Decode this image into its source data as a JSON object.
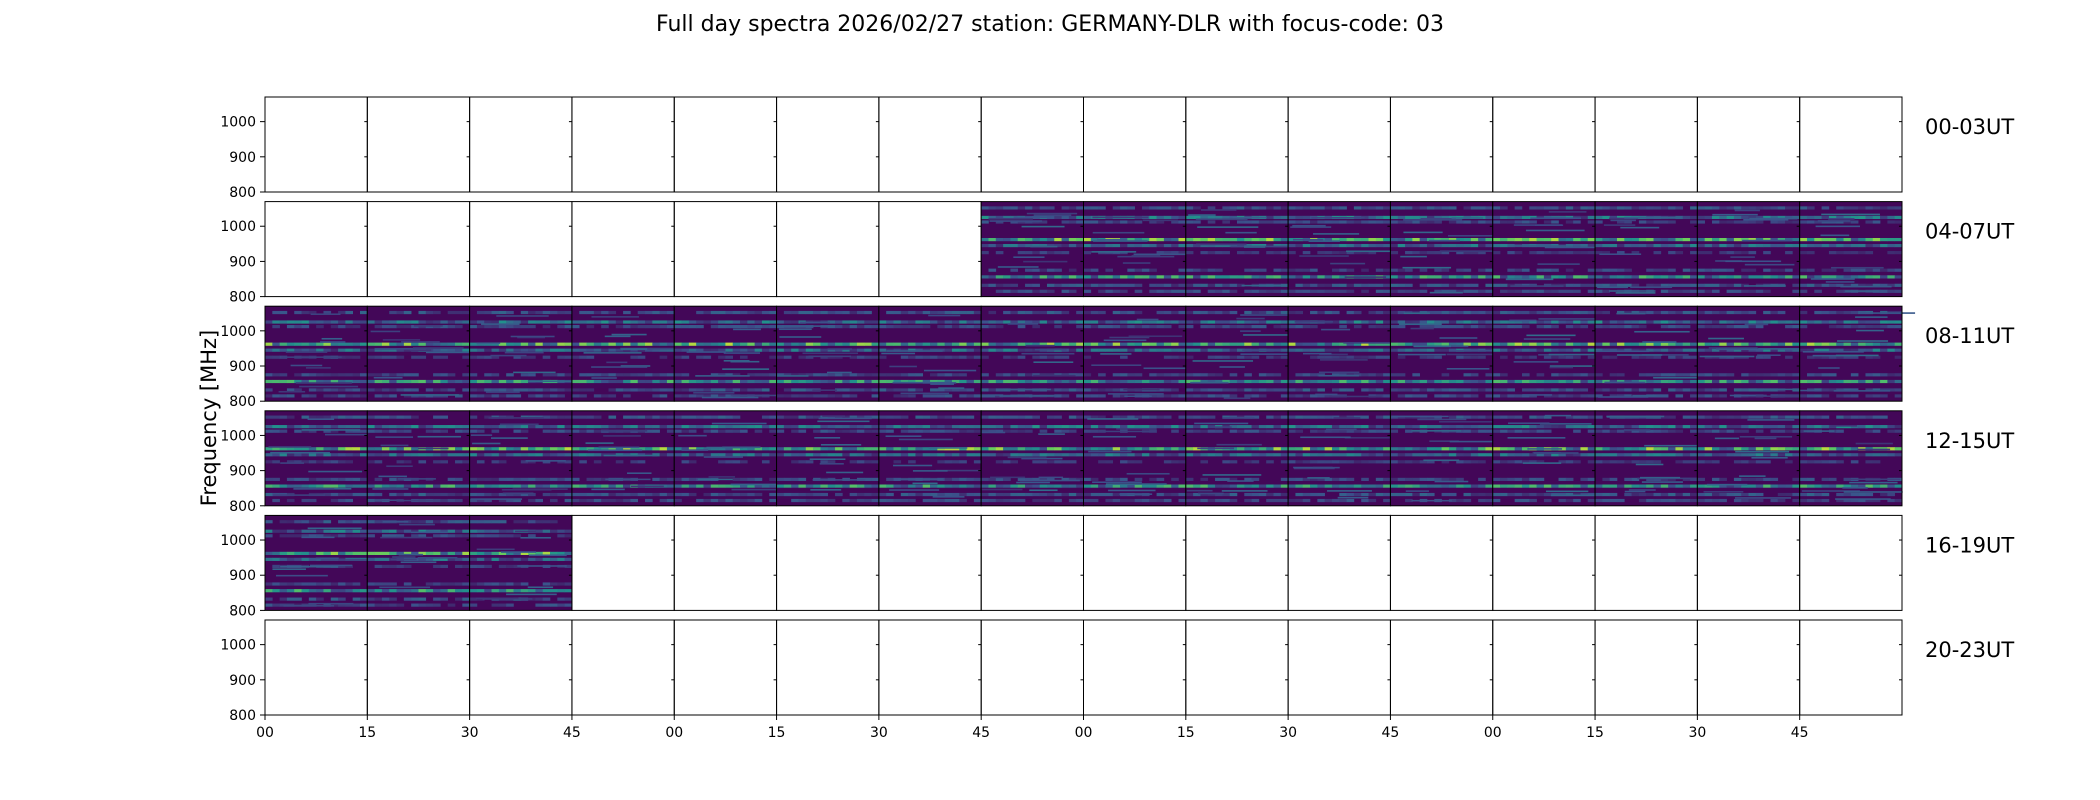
{
  "figure": {
    "title": "Full day spectra 2026/02/27 station: GERMANY-DLR with focus-code: 03"
  },
  "chart_data": {
    "type": "heatmap",
    "title": "Full day spectra 2026/02/27 station: GERMANY-DLR with focus-code: 03",
    "ylabel": "Frequency [MHz]",
    "xlabel": "",
    "ylim": [
      800,
      1070
    ],
    "yticks": [
      800,
      900,
      1000
    ],
    "xticks": [
      "00",
      "15",
      "30",
      "45",
      "00",
      "15",
      "30",
      "45",
      "00",
      "15",
      "30",
      "45",
      "00",
      "15",
      "30",
      "45"
    ],
    "colormap": "viridis",
    "colormap_colors": [
      "#440154",
      "#3b528b",
      "#21918c",
      "#5ec962",
      "#fde725"
    ],
    "panels_per_row": 16,
    "minutes_per_panel": 15,
    "rows": [
      {
        "label": "00-03UT",
        "filled": []
      },
      {
        "label": "04-07UT",
        "filled": [
          7,
          8,
          9,
          10,
          11,
          12,
          13,
          14,
          15
        ]
      },
      {
        "label": "08-11UT",
        "filled": [
          0,
          1,
          2,
          3,
          4,
          5,
          6,
          7,
          8,
          9,
          10,
          11,
          12,
          13,
          14,
          15
        ]
      },
      {
        "label": "12-15UT",
        "filled": [
          0,
          1,
          2,
          3,
          4,
          5,
          6,
          7,
          8,
          9,
          10,
          11,
          12,
          13,
          14,
          15
        ]
      },
      {
        "label": "16-19UT",
        "filled": [
          0,
          1,
          2
        ]
      },
      {
        "label": "20-23UT",
        "filled": []
      }
    ],
    "emission_bands_mhz": [
      {
        "freq": 1052,
        "strength": 0.35
      },
      {
        "freq": 1025,
        "strength": 0.55
      },
      {
        "freq": 1012,
        "strength": 0.3
      },
      {
        "freq": 962,
        "strength": 0.95
      },
      {
        "freq": 945,
        "strength": 0.5
      },
      {
        "freq": 925,
        "strength": 0.25
      },
      {
        "freq": 875,
        "strength": 0.3
      },
      {
        "freq": 856,
        "strength": 0.75
      },
      {
        "freq": 832,
        "strength": 0.35
      },
      {
        "freq": 815,
        "strength": 0.3
      }
    ]
  }
}
